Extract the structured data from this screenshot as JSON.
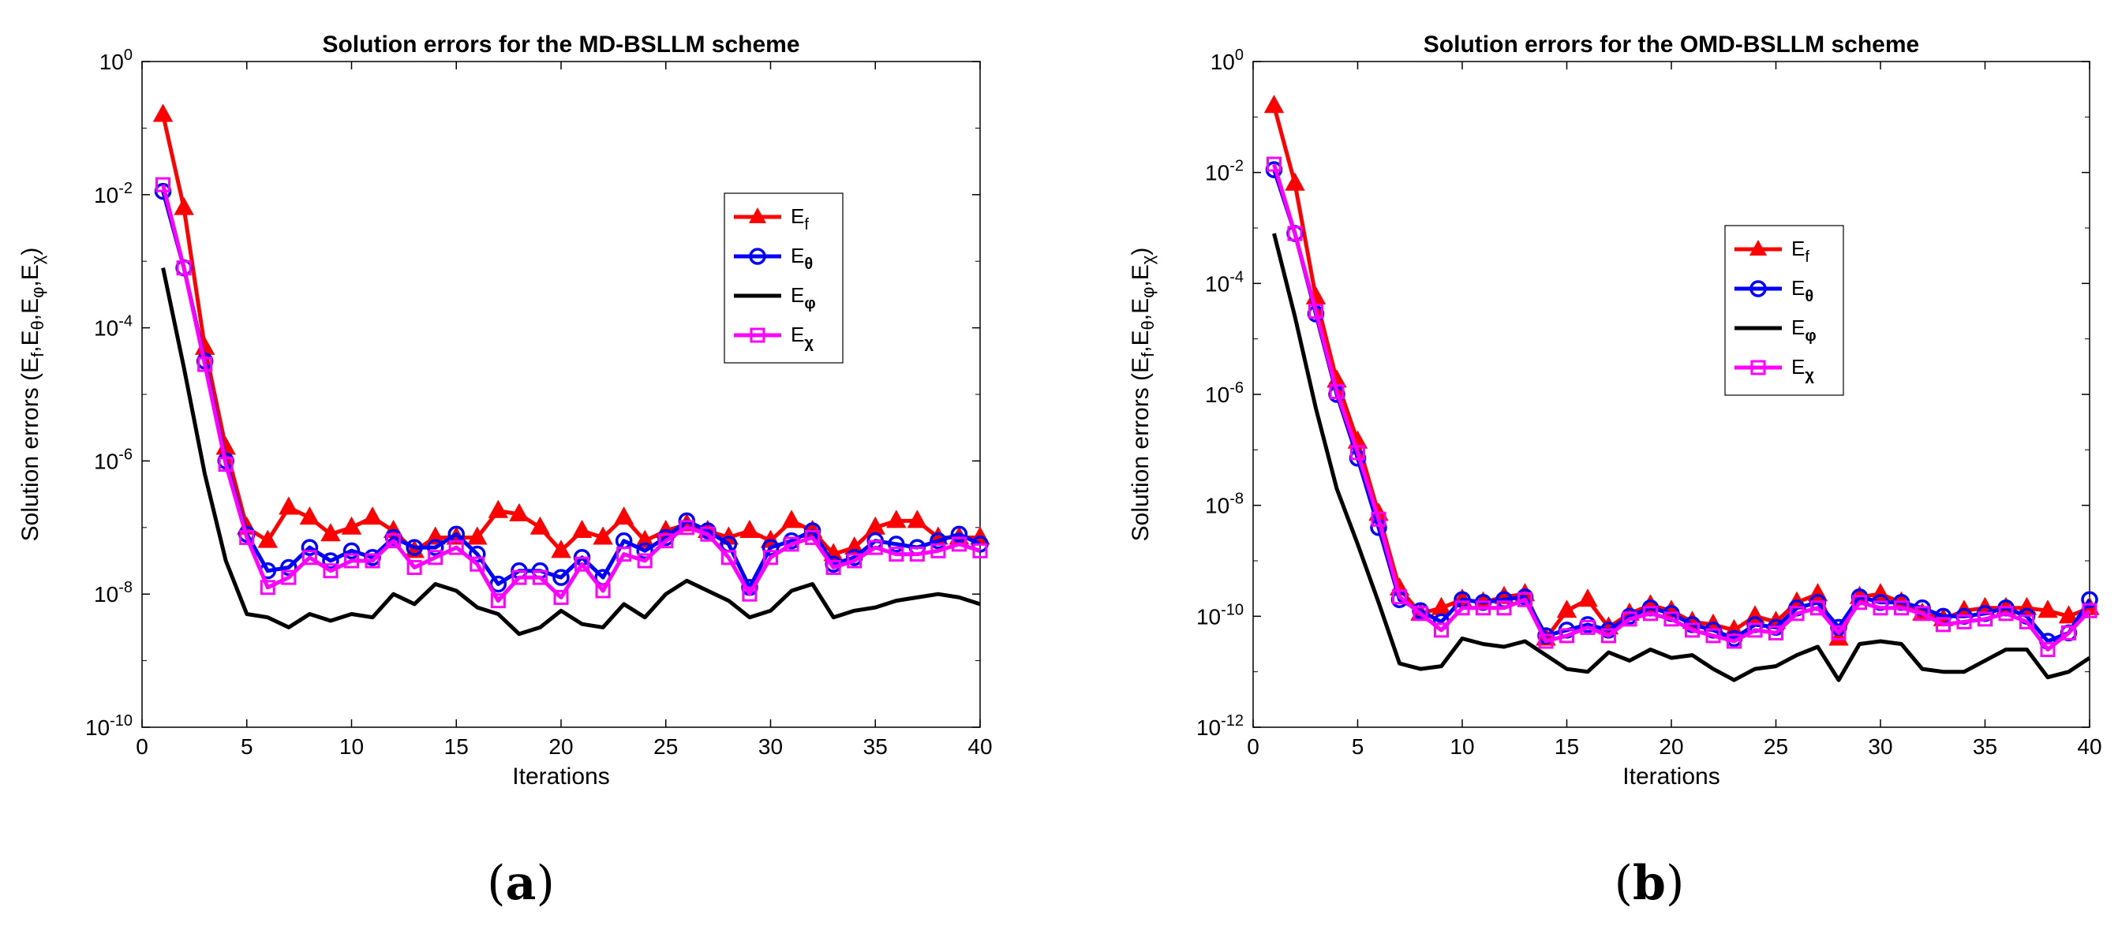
{
  "chart_data": [
    {
      "type": "line",
      "panel": "a",
      "caption_label": "a",
      "title": "Solution errors for the MD-BSLLM scheme",
      "xlabel": "Iterations",
      "ylabel": "Solution errors (E_f, E_θ, E_φ, E_χ)",
      "yscale": "log",
      "xlim": [
        0,
        40
      ],
      "ylim_exp": [
        -10,
        0
      ],
      "xticks": [
        0,
        5,
        10,
        15,
        20,
        25,
        30,
        35,
        40
      ],
      "ytick_exps": [
        -10,
        -8,
        -6,
        -4,
        -2,
        0
      ],
      "legend_position": "upper-right",
      "legend": [
        {
          "key": "f",
          "label": "E",
          "sub": "f"
        },
        {
          "key": "theta",
          "label": "E",
          "sub": "θ"
        },
        {
          "key": "phi",
          "label": "E",
          "sub": "φ"
        },
        {
          "key": "chi",
          "label": "E",
          "sub": "χ"
        }
      ],
      "x": [
        1,
        2,
        3,
        4,
        5,
        6,
        7,
        8,
        9,
        10,
        11,
        12,
        13,
        14,
        15,
        16,
        17,
        18,
        19,
        20,
        21,
        22,
        23,
        24,
        25,
        26,
        27,
        28,
        29,
        30,
        31,
        32,
        33,
        34,
        35,
        36,
        37,
        38,
        39,
        40
      ],
      "series": [
        {
          "key": "f",
          "name": "E_f",
          "color": "#ff0000",
          "marker": "triangle",
          "log10": [
            -0.8,
            -2.2,
            -4.3,
            -5.8,
            -7.0,
            -7.2,
            -6.7,
            -6.85,
            -7.1,
            -7.0,
            -6.85,
            -7.05,
            -7.35,
            -7.15,
            -7.15,
            -7.15,
            -6.75,
            -6.8,
            -7.0,
            -7.35,
            -7.05,
            -7.15,
            -6.85,
            -7.2,
            -7.05,
            -6.95,
            -7.05,
            -7.15,
            -7.05,
            -7.2,
            -6.9,
            -7.05,
            -7.4,
            -7.3,
            -7.0,
            -6.9,
            -6.9,
            -7.15,
            -7.15,
            -7.15
          ]
        },
        {
          "key": "theta",
          "name": "E_θ",
          "color": "#0000ff",
          "marker": "circle",
          "log10": [
            -1.95,
            -3.1,
            -4.5,
            -6.0,
            -7.1,
            -7.65,
            -7.6,
            -7.3,
            -7.5,
            -7.35,
            -7.45,
            -7.15,
            -7.3,
            -7.3,
            -7.1,
            -7.4,
            -7.85,
            -7.65,
            -7.65,
            -7.75,
            -7.45,
            -7.75,
            -7.2,
            -7.35,
            -7.15,
            -6.9,
            -7.05,
            -7.25,
            -7.9,
            -7.3,
            -7.2,
            -7.05,
            -7.55,
            -7.45,
            -7.2,
            -7.25,
            -7.3,
            -7.2,
            -7.1,
            -7.25
          ]
        },
        {
          "key": "phi",
          "name": "E_φ",
          "color": "#000000",
          "marker": "none",
          "log10": [
            -3.1,
            -4.6,
            -6.2,
            -7.5,
            -8.3,
            -8.35,
            -8.5,
            -8.3,
            -8.4,
            -8.3,
            -8.35,
            -8.0,
            -8.15,
            -7.85,
            -7.95,
            -8.2,
            -8.3,
            -8.6,
            -8.5,
            -8.25,
            -8.45,
            -8.5,
            -8.15,
            -8.35,
            -8.0,
            -7.8,
            -7.95,
            -8.1,
            -8.35,
            -8.25,
            -7.95,
            -7.85,
            -8.35,
            -8.25,
            -8.2,
            -8.1,
            -8.05,
            -8.0,
            -8.05,
            -8.15
          ]
        },
        {
          "key": "chi",
          "name": "E_χ",
          "color": "#ff00ff",
          "marker": "square",
          "log10": [
            -1.85,
            -3.1,
            -4.55,
            -6.05,
            -7.15,
            -7.9,
            -7.75,
            -7.45,
            -7.65,
            -7.5,
            -7.5,
            -7.2,
            -7.6,
            -7.45,
            -7.3,
            -7.55,
            -8.1,
            -7.75,
            -7.75,
            -8.05,
            -7.55,
            -7.95,
            -7.4,
            -7.5,
            -7.2,
            -7.0,
            -7.1,
            -7.45,
            -8.0,
            -7.45,
            -7.25,
            -7.15,
            -7.6,
            -7.5,
            -7.3,
            -7.4,
            -7.4,
            -7.35,
            -7.25,
            -7.35
          ]
        }
      ]
    },
    {
      "type": "line",
      "panel": "b",
      "caption_label": "b",
      "title": "Solution errors for the OMD-BSLLM scheme",
      "xlabel": "Iterations",
      "ylabel": "Solution errors (E_f, E_θ, E_φ, E_χ)",
      "yscale": "log",
      "xlim": [
        0,
        40
      ],
      "ylim_exp": [
        -12,
        0
      ],
      "xticks": [
        0,
        5,
        10,
        15,
        20,
        25,
        30,
        35,
        40
      ],
      "ytick_exps": [
        -12,
        -10,
        -8,
        -6,
        -4,
        -2,
        0
      ],
      "legend_position": "upper-right",
      "legend": [
        {
          "key": "f",
          "label": "E",
          "sub": "f"
        },
        {
          "key": "theta",
          "label": "E",
          "sub": "θ"
        },
        {
          "key": "phi",
          "label": "E",
          "sub": "φ"
        },
        {
          "key": "chi",
          "label": "E",
          "sub": "χ"
        }
      ],
      "x": [
        1,
        2,
        3,
        4,
        5,
        6,
        7,
        8,
        9,
        10,
        11,
        12,
        13,
        14,
        15,
        16,
        17,
        18,
        19,
        20,
        21,
        22,
        23,
        24,
        25,
        26,
        27,
        28,
        29,
        30,
        31,
        32,
        33,
        34,
        35,
        36,
        37,
        38,
        39,
        40
      ],
      "series": [
        {
          "key": "f",
          "name": "E_f",
          "color": "#ff0000",
          "marker": "triangle",
          "log10": [
            -0.8,
            -2.2,
            -4.25,
            -5.75,
            -6.85,
            -8.15,
            -9.5,
            -9.95,
            -9.85,
            -9.7,
            -9.75,
            -9.65,
            -9.6,
            -10.4,
            -9.9,
            -9.7,
            -10.2,
            -9.95,
            -9.8,
            -9.9,
            -10.1,
            -10.15,
            -10.25,
            -10.0,
            -10.1,
            -9.75,
            -9.6,
            -10.4,
            -9.65,
            -9.6,
            -9.75,
            -9.95,
            -10.05,
            -9.9,
            -9.85,
            -9.85,
            -9.85,
            -9.9,
            -10.0,
            -9.85
          ]
        },
        {
          "key": "theta",
          "name": "E_θ",
          "color": "#0000ff",
          "marker": "circle",
          "log10": [
            -1.95,
            -3.1,
            -4.55,
            -6.0,
            -7.15,
            -8.4,
            -9.7,
            -9.9,
            -10.1,
            -9.7,
            -9.75,
            -9.7,
            -9.65,
            -10.35,
            -10.25,
            -10.15,
            -10.25,
            -10.0,
            -9.85,
            -9.95,
            -10.15,
            -10.25,
            -10.4,
            -10.15,
            -10.2,
            -9.85,
            -9.75,
            -10.2,
            -9.65,
            -9.75,
            -9.75,
            -9.85,
            -10.0,
            -10.0,
            -9.95,
            -9.85,
            -10.0,
            -10.45,
            -10.3,
            -9.7
          ]
        },
        {
          "key": "phi",
          "name": "E_φ",
          "color": "#000000",
          "marker": "none",
          "log10": [
            -3.1,
            -4.6,
            -6.25,
            -7.7,
            -8.7,
            -9.75,
            -10.85,
            -10.95,
            -10.9,
            -10.4,
            -10.5,
            -10.55,
            -10.45,
            -10.7,
            -10.95,
            -11.0,
            -10.65,
            -10.8,
            -10.6,
            -10.75,
            -10.7,
            -10.95,
            -11.15,
            -10.95,
            -10.9,
            -10.7,
            -10.55,
            -11.15,
            -10.5,
            -10.45,
            -10.5,
            -10.95,
            -11.0,
            -11.0,
            -10.8,
            -10.6,
            -10.6,
            -11.1,
            -11.0,
            -10.75
          ]
        },
        {
          "key": "chi",
          "name": "E_χ",
          "color": "#ff00ff",
          "marker": "square",
          "log10": [
            -1.85,
            -3.1,
            -4.5,
            -5.95,
            -7.05,
            -8.25,
            -9.65,
            -9.95,
            -10.25,
            -9.85,
            -9.85,
            -9.85,
            -9.7,
            -10.45,
            -10.35,
            -10.2,
            -10.35,
            -10.05,
            -9.95,
            -10.05,
            -10.25,
            -10.35,
            -10.45,
            -10.25,
            -10.3,
            -9.95,
            -9.85,
            -10.3,
            -9.75,
            -9.85,
            -9.85,
            -9.95,
            -10.15,
            -10.1,
            -10.05,
            -9.95,
            -10.1,
            -10.6,
            -10.3,
            -9.9
          ]
        }
      ]
    }
  ]
}
